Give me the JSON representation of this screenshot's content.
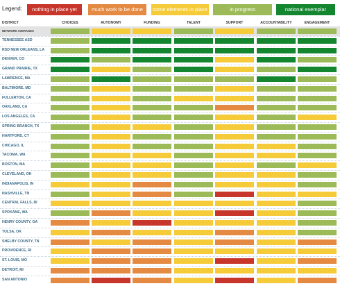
{
  "legend": {
    "title": "Legend:",
    "items": [
      {
        "label": "nothing in place yet",
        "color": "#c8352b"
      },
      {
        "label": "much work to be done",
        "color": "#e58a42"
      },
      {
        "label": "some elements in place",
        "color": "#f5cb3a"
      },
      {
        "label": "in progress",
        "color": "#9cbb58"
      },
      {
        "label": "national exemplar",
        "color": "#14862f"
      }
    ]
  },
  "chart_data": {
    "type": "heatmap",
    "row_header": "DISTRICT",
    "columns": [
      "CHOICES",
      "AUTONOMY",
      "FUNDING",
      "TALENT",
      "SUPPORT",
      "ACCOUNTABILITY",
      "ENGAGEMENT"
    ],
    "levels": [
      "nothing in place yet",
      "much work to be done",
      "some elements in place",
      "in progress",
      "national exemplar"
    ],
    "level_colors": [
      "#c8352b",
      "#e58a42",
      "#f5cb3a",
      "#9cbb58",
      "#14862f"
    ],
    "rows": [
      {
        "name": "NETWORK AVERAGES",
        "values": [
          3,
          2,
          2,
          3,
          2,
          3,
          3
        ]
      },
      {
        "name": "TENNESSEE ASD",
        "values": [
          3,
          4,
          4,
          4,
          4,
          4,
          4
        ]
      },
      {
        "name": "RSD NEW ORLEANS, LA",
        "values": [
          3,
          4,
          4,
          4,
          4,
          4,
          4
        ]
      },
      {
        "name": "DENVER, CO",
        "values": [
          4,
          3,
          4,
          4,
          2,
          4,
          3
        ]
      },
      {
        "name": "GRAND PRAIRIE, TX",
        "values": [
          4,
          2,
          3,
          4,
          2,
          3,
          4
        ]
      },
      {
        "name": "LAWRENCE, MA",
        "values": [
          3,
          4,
          3,
          3,
          3,
          4,
          3
        ]
      },
      {
        "name": "BALTIMORE, MD",
        "values": [
          3,
          2,
          3,
          3,
          2,
          3,
          3
        ]
      },
      {
        "name": "FULLERTON, CA",
        "values": [
          3,
          2,
          3,
          2,
          2,
          3,
          3
        ]
      },
      {
        "name": "OAKLAND, CA",
        "values": [
          3,
          2,
          3,
          3,
          1,
          3,
          3
        ]
      },
      {
        "name": "LOS ANGELES, CA",
        "values": [
          3,
          2,
          3,
          3,
          2,
          3,
          2
        ]
      },
      {
        "name": "SPRING BRANCH, TX",
        "values": [
          3,
          2,
          2,
          3,
          2,
          3,
          3
        ]
      },
      {
        "name": "HARTFORD, CT",
        "values": [
          3,
          2,
          3,
          3,
          2,
          3,
          3
        ]
      },
      {
        "name": "CHICAGO, IL",
        "values": [
          3,
          2,
          3,
          3,
          2,
          2,
          3
        ]
      },
      {
        "name": "TACOMA, WA",
        "values": [
          3,
          2,
          2,
          3,
          2,
          2,
          3
        ]
      },
      {
        "name": "BOSTON, MA",
        "values": [
          3,
          2,
          2,
          3,
          2,
          3,
          2
        ]
      },
      {
        "name": "CLEVELAND, OH",
        "values": [
          3,
          2,
          2,
          3,
          2,
          2,
          3
        ]
      },
      {
        "name": "INDIANAPOLIS, IN",
        "values": [
          2,
          2,
          1,
          3,
          2,
          2,
          3
        ]
      },
      {
        "name": "NASHVILLE, TN",
        "values": [
          3,
          2,
          1,
          3,
          0,
          2,
          2
        ]
      },
      {
        "name": "CENTRAL FALLS, RI",
        "values": [
          2,
          2,
          2,
          2,
          2,
          2,
          3
        ]
      },
      {
        "name": "SPOKANE, WA",
        "values": [
          3,
          1,
          2,
          2,
          0,
          2,
          3
        ]
      },
      {
        "name": "HENRY COUNTY, GA",
        "values": [
          1,
          2,
          0,
          2,
          2,
          2,
          3
        ]
      },
      {
        "name": "TULSA, OK",
        "values": [
          2,
          1,
          2,
          2,
          1,
          2,
          3
        ]
      },
      {
        "name": "SHELBY COUNTY, TN",
        "values": [
          1,
          2,
          1,
          2,
          1,
          2,
          1
        ]
      },
      {
        "name": "PROVIDENCE, RI",
        "values": [
          2,
          1,
          1,
          2,
          2,
          2,
          2
        ]
      },
      {
        "name": "ST. LOUIS, MO",
        "values": [
          2,
          1,
          1,
          2,
          0,
          2,
          1
        ]
      },
      {
        "name": "DETROIT, MI",
        "values": [
          1,
          1,
          1,
          2,
          2,
          2,
          2
        ]
      },
      {
        "name": "SAN ANTONIO",
        "values": [
          1,
          0,
          1,
          2,
          0,
          2,
          1
        ]
      }
    ]
  }
}
